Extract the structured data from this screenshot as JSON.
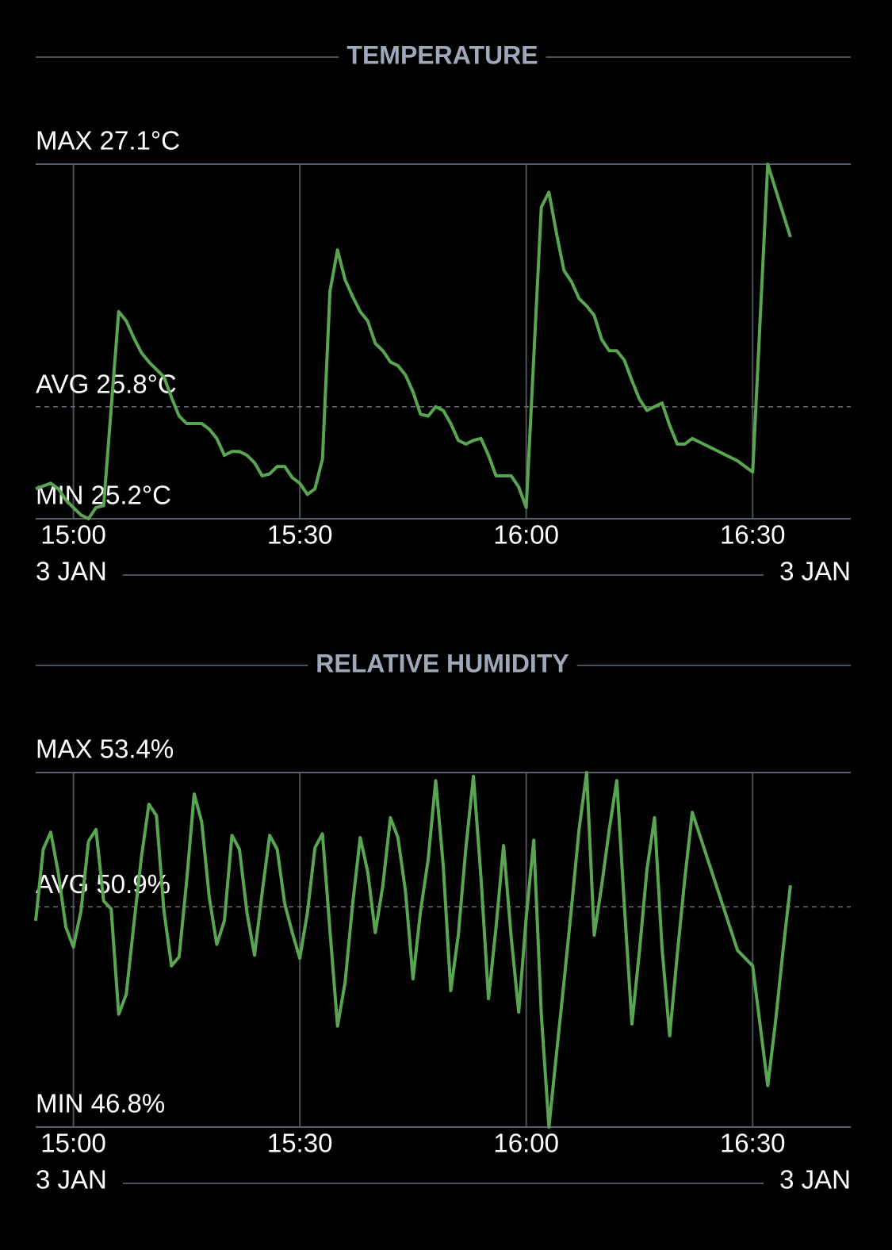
{
  "chart_data": [
    {
      "type": "line",
      "title": "TEMPERATURE",
      "x": [
        "14:55",
        "14:57",
        "14:58",
        "14:59",
        "15:00",
        "15:01",
        "15:02",
        "15:03",
        "15:04",
        "15:06",
        "15:07",
        "15:08",
        "15:09",
        "15:10",
        "15:11",
        "15:12",
        "15:13",
        "15:14",
        "15:15",
        "15:16",
        "15:17",
        "15:18",
        "15:19",
        "15:20",
        "15:21",
        "15:22",
        "15:23",
        "15:24",
        "15:25",
        "15:26",
        "15:27",
        "15:28",
        "15:29",
        "15:30",
        "15:31",
        "15:32",
        "15:33",
        "15:34",
        "15:35",
        "15:36",
        "15:37",
        "15:38",
        "15:39",
        "15:40",
        "15:41",
        "15:42",
        "15:43",
        "15:44",
        "15:45",
        "15:46",
        "15:47",
        "15:48",
        "15:49",
        "15:50",
        "15:51",
        "15:52",
        "15:53",
        "15:54",
        "15:55",
        "15:56",
        "15:57",
        "15:58",
        "15:59",
        "16:00",
        "16:02",
        "16:03",
        "16:04",
        "16:05",
        "16:06",
        "16:07",
        "16:08",
        "16:09",
        "16:10",
        "16:11",
        "16:12",
        "16:13",
        "16:14",
        "16:15",
        "16:16",
        "16:17",
        "16:18",
        "16:19",
        "16:20",
        "16:21",
        "16:22",
        "16:28",
        "16:30",
        "16:32",
        "16:33",
        "16:34",
        "16:35"
      ],
      "values": [
        25.36,
        25.39,
        25.36,
        25.3,
        25.26,
        25.22,
        25.2,
        25.26,
        25.27,
        26.31,
        26.26,
        26.17,
        26.09,
        26.04,
        26.0,
        25.96,
        25.85,
        25.75,
        25.71,
        25.71,
        25.71,
        25.68,
        25.63,
        25.54,
        25.56,
        25.56,
        25.54,
        25.5,
        25.43,
        25.44,
        25.48,
        25.48,
        25.42,
        25.39,
        25.33,
        25.36,
        25.52,
        26.42,
        26.64,
        26.48,
        26.39,
        26.31,
        26.26,
        26.14,
        26.1,
        26.04,
        26.02,
        25.97,
        25.88,
        25.76,
        25.75,
        25.8,
        25.78,
        25.71,
        25.62,
        25.6,
        25.62,
        25.63,
        25.54,
        25.43,
        25.43,
        25.43,
        25.37,
        25.26,
        26.87,
        26.95,
        26.73,
        26.53,
        26.47,
        26.38,
        26.34,
        26.29,
        26.16,
        26.1,
        26.1,
        26.05,
        25.94,
        25.84,
        25.78,
        25.8,
        25.82,
        25.7,
        25.6,
        25.6,
        25.63,
        25.51,
        25.45,
        27.1,
        26.97,
        26.84,
        26.71
      ],
      "color": "#5aa552",
      "xlim": [
        "14:55",
        "16:43"
      ],
      "xticks": [
        "15:00",
        "15:30",
        "16:00",
        "16:30"
      ],
      "ylim": [
        25.2,
        27.1
      ],
      "yticks": [
        {
          "value": 25.2,
          "label": "MIN 25.2°C"
        },
        {
          "value": 27.1,
          "label": "MAX 27.1°C"
        }
      ],
      "average": {
        "value": 25.8,
        "label": "AVG 25.8°C"
      },
      "date_labels": [
        "3 JAN",
        "3 JAN"
      ],
      "grid": true
    },
    {
      "type": "line",
      "title": "RELATIVE HUMIDITY",
      "x": [
        "14:55",
        "14:56",
        "14:57",
        "14:58",
        "14:59",
        "15:00",
        "15:01",
        "15:02",
        "15:03",
        "15:04",
        "15:05",
        "15:06",
        "15:07",
        "15:08",
        "15:09",
        "15:10",
        "15:11",
        "15:12",
        "15:13",
        "15:14",
        "15:15",
        "15:16",
        "15:17",
        "15:18",
        "15:19",
        "15:20",
        "15:21",
        "15:22",
        "15:23",
        "15:24",
        "15:25",
        "15:26",
        "15:27",
        "15:28",
        "15:29",
        "15:30",
        "15:31",
        "15:32",
        "15:33",
        "15:34",
        "15:35",
        "15:36",
        "15:37",
        "15:38",
        "15:39",
        "15:40",
        "15:41",
        "15:42",
        "15:43",
        "15:44",
        "15:45",
        "15:46",
        "15:47",
        "15:48",
        "15:49",
        "15:50",
        "15:51",
        "15:52",
        "15:53",
        "15:54",
        "15:55",
        "15:56",
        "15:57",
        "15:58",
        "15:59",
        "16:00",
        "16:01",
        "16:02",
        "16:03",
        "16:04",
        "16:05",
        "16:06",
        "16:07",
        "16:08",
        "16:09",
        "16:10",
        "16:11",
        "16:12",
        "16:13",
        "16:14",
        "16:15",
        "16:16",
        "16:17",
        "16:18",
        "16:19",
        "16:20",
        "16:21",
        "16:22",
        "16:28",
        "16:30",
        "16:32",
        "16:33",
        "16:34",
        "16:35"
      ],
      "values": [
        50.64,
        51.97,
        52.29,
        51.52,
        50.52,
        50.15,
        50.82,
        52.12,
        52.34,
        51.01,
        50.86,
        48.9,
        49.27,
        50.56,
        51.82,
        52.81,
        52.6,
        50.82,
        49.8,
        49.97,
        51.38,
        53.0,
        52.48,
        51.08,
        50.2,
        50.64,
        52.23,
        51.97,
        50.79,
        50.0,
        51.16,
        52.23,
        51.97,
        50.96,
        50.42,
        49.94,
        50.79,
        52.0,
        52.26,
        50.45,
        48.68,
        49.5,
        50.96,
        52.19,
        51.55,
        50.42,
        51.3,
        52.56,
        52.19,
        51.19,
        49.56,
        50.82,
        51.78,
        53.25,
        51.67,
        49.34,
        50.37,
        52.0,
        53.33,
        51.45,
        49.19,
        50.52,
        52.04,
        50.34,
        48.94,
        50.71,
        52.14,
        48.9,
        46.8,
        48.16,
        49.5,
        50.89,
        52.34,
        53.4,
        50.37,
        51.3,
        52.34,
        53.25,
        50.93,
        48.72,
        50.08,
        51.6,
        52.56,
        50.12,
        48.5,
        50.0,
        51.41,
        52.66,
        50.09,
        49.8,
        47.57,
        48.72,
        50.05,
        51.3
      ],
      "color": "#5aa552",
      "xlim": [
        "14:55",
        "16:43"
      ],
      "xticks": [
        "15:00",
        "15:30",
        "16:00",
        "16:30"
      ],
      "ylim": [
        46.8,
        53.4
      ],
      "yticks": [
        {
          "value": 46.8,
          "label": "MIN 46.8%"
        },
        {
          "value": 53.4,
          "label": "MAX 53.4%"
        }
      ],
      "average": {
        "value": 50.9,
        "label": "AVG 50.9%"
      },
      "date_labels": [
        "3 JAN",
        "3 JAN"
      ],
      "grid": true
    }
  ]
}
